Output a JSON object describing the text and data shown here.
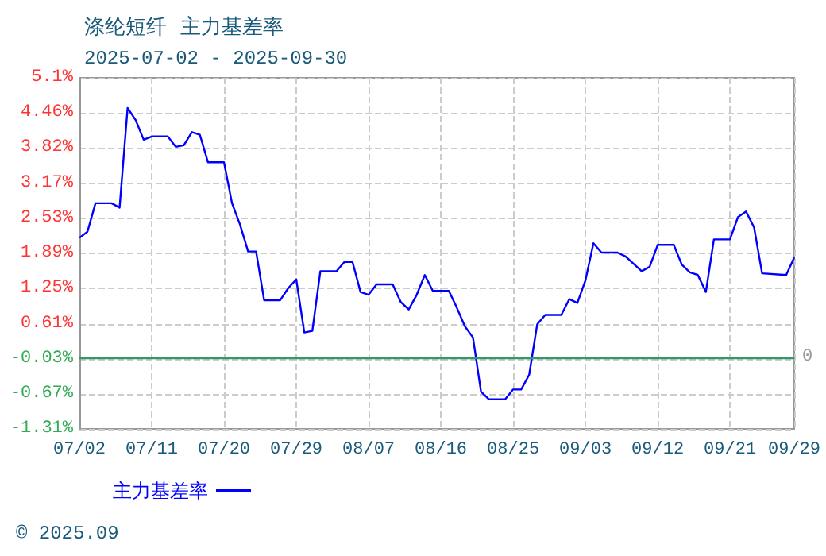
{
  "chart_data": {
    "type": "line",
    "title": "涤纶短纤  主力基差率",
    "subtitle": "2025-07-02 - 2025-09-30",
    "x": [
      "2025-07-02",
      "2025-07-03",
      "2025-07-04",
      "2025-07-06",
      "2025-07-07",
      "2025-07-08",
      "2025-07-09",
      "2025-07-10",
      "2025-07-11",
      "2025-07-13",
      "2025-07-14",
      "2025-07-15",
      "2025-07-16",
      "2025-07-17",
      "2025-07-18",
      "2025-07-20",
      "2025-07-21",
      "2025-07-22",
      "2025-07-23",
      "2025-07-24",
      "2025-07-25",
      "2025-07-27",
      "2025-07-28",
      "2025-07-29",
      "2025-07-30",
      "2025-07-31",
      "2025-08-01",
      "2025-08-03",
      "2025-08-04",
      "2025-08-05",
      "2025-08-06",
      "2025-08-07",
      "2025-08-08",
      "2025-08-10",
      "2025-08-11",
      "2025-08-12",
      "2025-08-13",
      "2025-08-14",
      "2025-08-15",
      "2025-08-17",
      "2025-08-18",
      "2025-08-19",
      "2025-08-20",
      "2025-08-21",
      "2025-08-22",
      "2025-08-24",
      "2025-08-25",
      "2025-08-26",
      "2025-08-27",
      "2025-08-28",
      "2025-08-29",
      "2025-08-31",
      "2025-09-01",
      "2025-09-02",
      "2025-09-03",
      "2025-09-04",
      "2025-09-05",
      "2025-09-07",
      "2025-09-08",
      "2025-09-10",
      "2025-09-11",
      "2025-09-12",
      "2025-09-14",
      "2025-09-15",
      "2025-09-16",
      "2025-09-17",
      "2025-09-18",
      "2025-09-19",
      "2025-09-21",
      "2025-09-22",
      "2025-09-23",
      "2025-09-24",
      "2025-09-25",
      "2025-09-28",
      "2025-09-29"
    ],
    "series": [
      {
        "name": "主力基差率",
        "color": "#0000ff",
        "values": [
          2.18,
          2.29,
          2.81,
          2.81,
          2.73,
          4.55,
          4.33,
          3.97,
          4.03,
          4.03,
          3.84,
          3.87,
          4.11,
          4.06,
          3.56,
          3.56,
          2.81,
          2.42,
          1.93,
          1.93,
          1.04,
          1.04,
          1.26,
          1.42,
          0.45,
          0.48,
          1.57,
          1.57,
          1.74,
          1.74,
          1.19,
          1.14,
          1.33,
          1.33,
          1.01,
          0.87,
          1.14,
          1.5,
          1.21,
          1.21,
          0.9,
          0.56,
          0.36,
          -0.63,
          -0.77,
          -0.77,
          -0.59,
          -0.59,
          -0.32,
          0.6,
          0.77,
          0.77,
          1.06,
          0.99,
          1.4,
          2.08,
          1.91,
          1.91,
          1.84,
          1.57,
          1.65,
          2.05,
          2.05,
          1.69,
          1.55,
          1.5,
          1.19,
          2.15,
          2.15,
          2.56,
          2.66,
          2.37,
          1.53,
          1.5,
          1.82
        ]
      }
    ],
    "xlim": [
      "2025-07-02",
      "2025-09-29"
    ],
    "xticks": [
      {
        "value": "2025-07-02",
        "label": "07/02"
      },
      {
        "value": "2025-07-11",
        "label": "07/11"
      },
      {
        "value": "2025-07-20",
        "label": "07/20"
      },
      {
        "value": "2025-07-29",
        "label": "07/29"
      },
      {
        "value": "2025-08-07",
        "label": "08/07"
      },
      {
        "value": "2025-08-16",
        "label": "08/16"
      },
      {
        "value": "2025-08-25",
        "label": "08/25"
      },
      {
        "value": "2025-09-03",
        "label": "09/03"
      },
      {
        "value": "2025-09-12",
        "label": "09/12"
      },
      {
        "value": "2025-09-21",
        "label": "09/21"
      },
      {
        "value": "2025-09-29",
        "label": "09/29"
      }
    ],
    "ylim": [
      -1.31,
      5.1
    ],
    "yticks": [
      {
        "value": -1.31,
        "label": "-1.31%"
      },
      {
        "value": -0.67,
        "label": "-0.67%"
      },
      {
        "value": -0.03,
        "label": "-0.03%"
      },
      {
        "value": 0.61,
        "label": "0.61%"
      },
      {
        "value": 1.25,
        "label": "1.25%"
      },
      {
        "value": 1.89,
        "label": "1.89%"
      },
      {
        "value": 2.53,
        "label": "2.53%"
      },
      {
        "value": 3.17,
        "label": "3.17%"
      },
      {
        "value": 3.82,
        "label": "3.82%"
      },
      {
        "value": 4.46,
        "label": "4.46%"
      },
      {
        "value": 5.1,
        "label": "5.1%"
      }
    ],
    "ref_lines": [
      {
        "axis": "y",
        "value": 0,
        "label": "0",
        "color": "#339966"
      }
    ],
    "annotations": [
      "© 2025.09"
    ],
    "grid": true,
    "legend": "bottom left",
    "marker": "none",
    "line_style": "solid"
  }
}
